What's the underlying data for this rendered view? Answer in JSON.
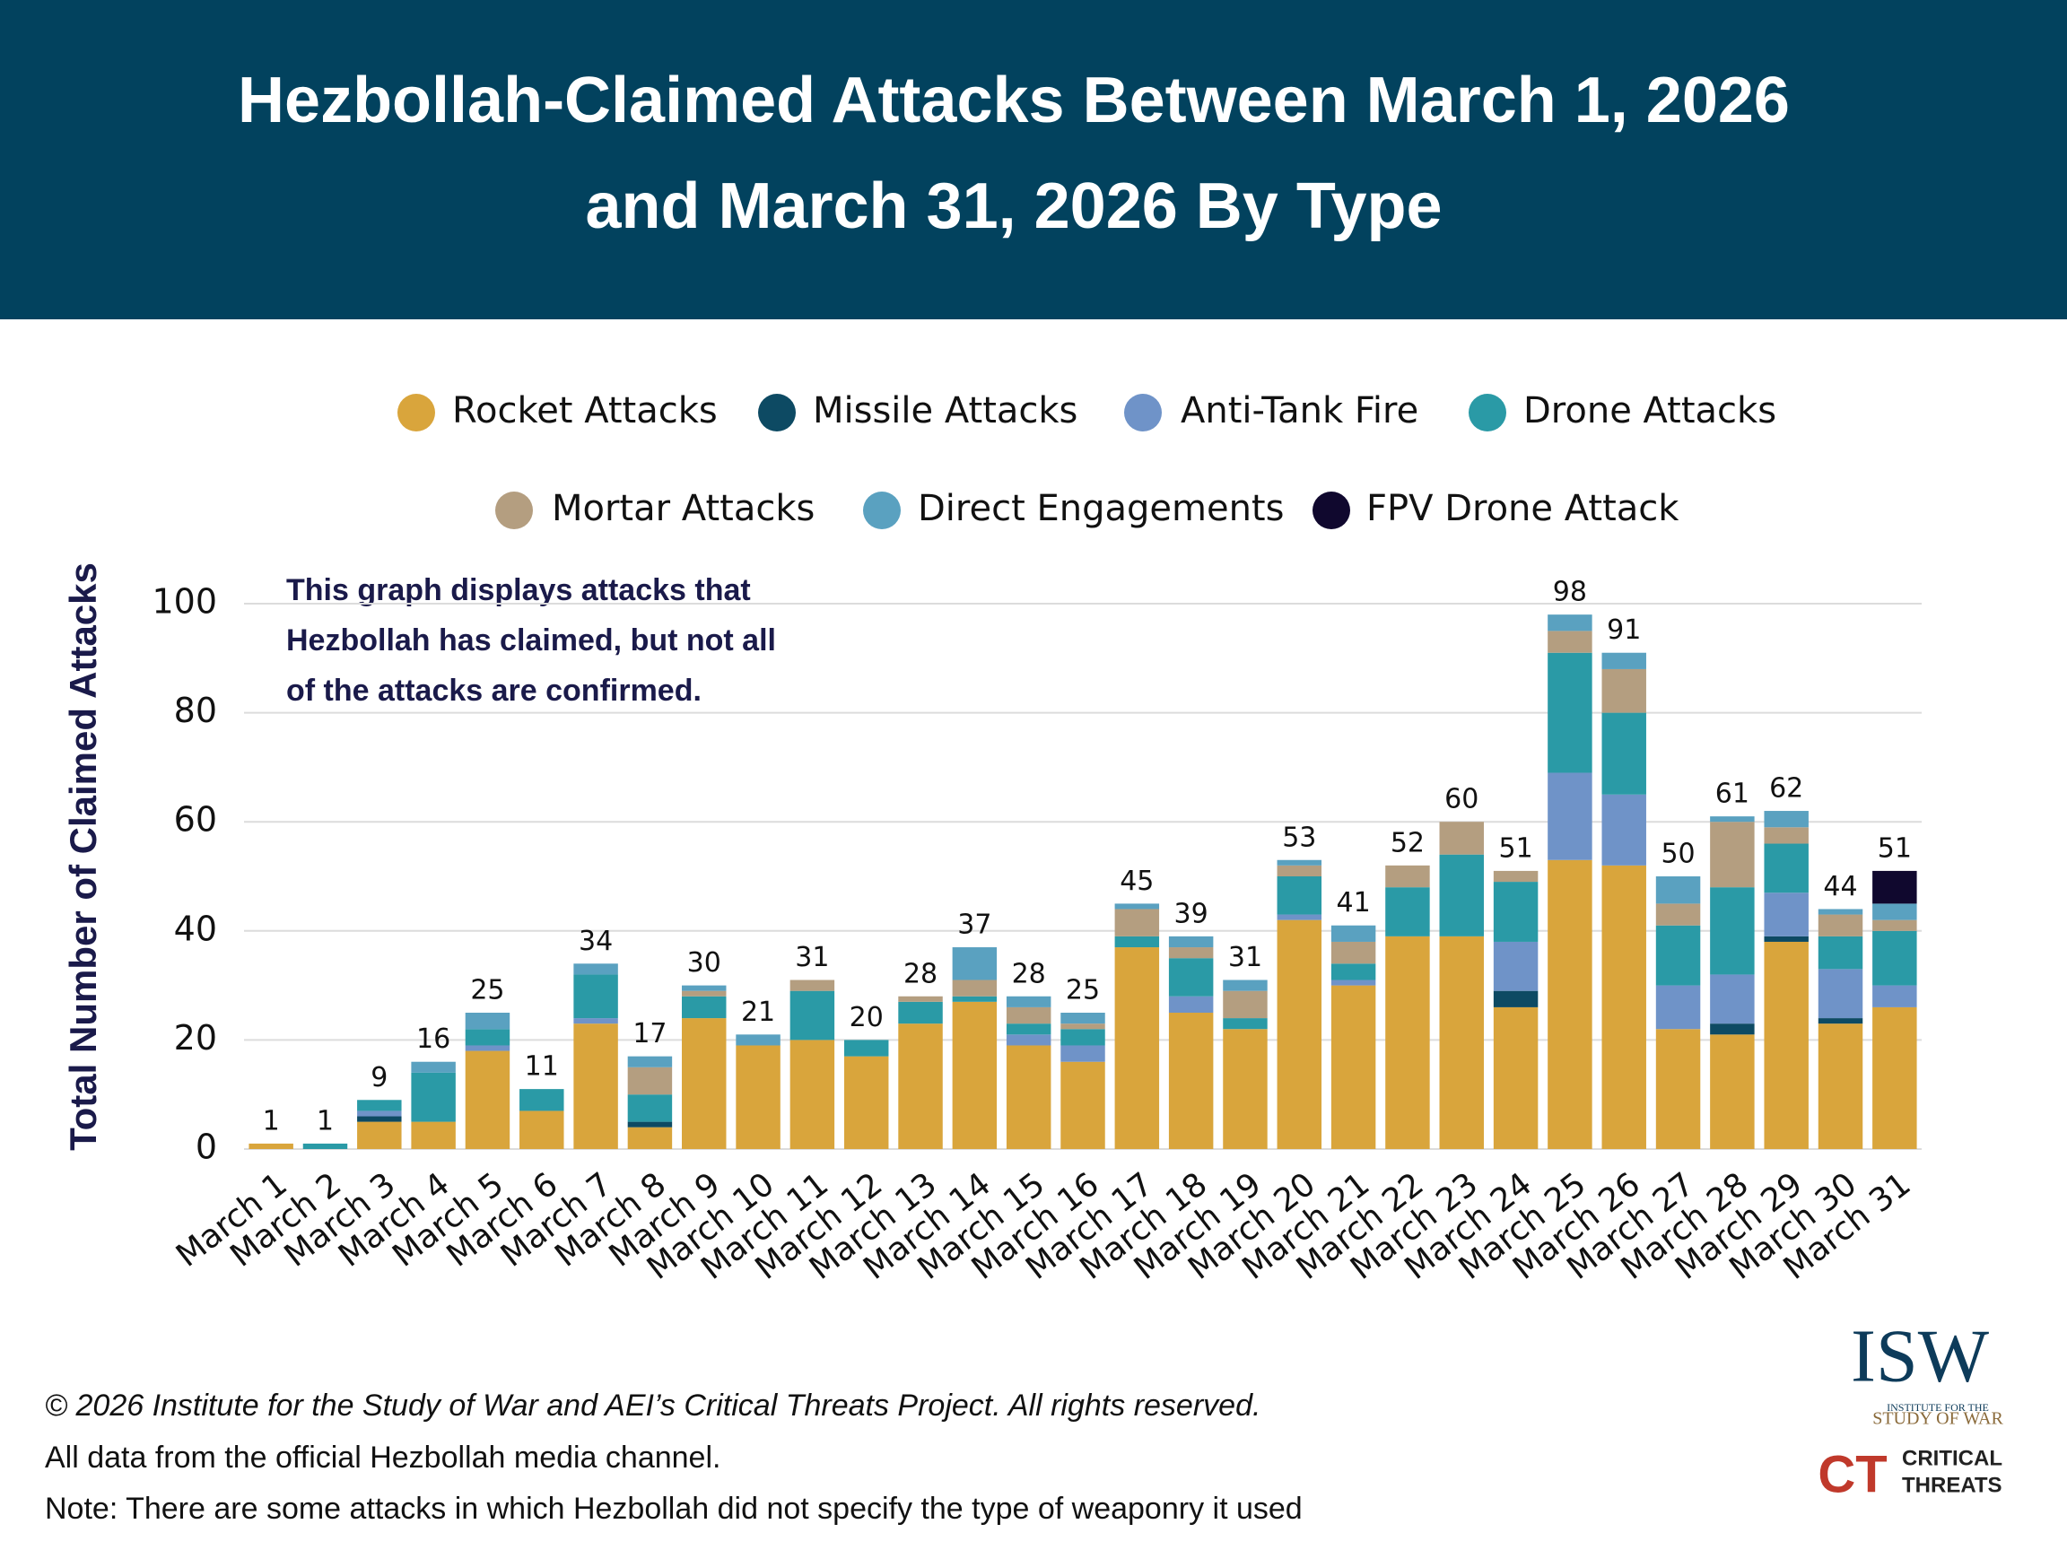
{
  "chart_data": {
    "type": "stacked-bar",
    "title": [
      "Hezbollah-Claimed Attacks Between March 1, 2026",
      "and March 31, 2026 By Type"
    ],
    "y_label": "Total Number of Claimed Attacks",
    "annotation": [
      "This graph displays attacks that",
      "Hezbollah has claimed, but not all",
      "of the attacks are confirmed."
    ],
    "categories": [
      "March 1",
      "March 2",
      "March 3",
      "March 4",
      "March 5",
      "March 6",
      "March 7",
      "March 8",
      "March 9",
      "March 10",
      "March 11",
      "March 12",
      "March 13",
      "March 14",
      "March 15",
      "March 16",
      "March 17",
      "March 18",
      "March 19",
      "March 20",
      "March 21",
      "March 22",
      "March 23",
      "March 24",
      "March 25",
      "March 26",
      "March 27",
      "March 28",
      "March 29",
      "March 30",
      "March 31"
    ],
    "series": [
      {
        "name": "Rocket Attacks",
        "color": "#d9a53c",
        "values": [
          1,
          0,
          5,
          5,
          18,
          7,
          23,
          4,
          24,
          19,
          20,
          17,
          23,
          27,
          19,
          16,
          37,
          25,
          22,
          42,
          30,
          39,
          39,
          26,
          53,
          52,
          22,
          21,
          38,
          23,
          26
        ]
      },
      {
        "name": "Missile Attacks",
        "color": "#0d4a63",
        "values": [
          0,
          0,
          1,
          0,
          0,
          0,
          0,
          1,
          0,
          0,
          0,
          0,
          0,
          0,
          0,
          0,
          0,
          0,
          0,
          0,
          0,
          0,
          0,
          3,
          0,
          0,
          0,
          2,
          1,
          1,
          0
        ]
      },
      {
        "name": "Anti-Tank Fire",
        "color": "#6f93c8",
        "values": [
          0,
          0,
          1,
          0,
          1,
          0,
          1,
          0,
          0,
          0,
          0,
          0,
          0,
          0,
          2,
          3,
          0,
          3,
          0,
          1,
          1,
          0,
          0,
          9,
          16,
          13,
          8,
          9,
          8,
          9,
          4
        ]
      },
      {
        "name": "Drone Attacks",
        "color": "#2a9aa6",
        "values": [
          0,
          1,
          2,
          9,
          3,
          4,
          8,
          5,
          4,
          0,
          9,
          3,
          4,
          1,
          2,
          3,
          2,
          7,
          2,
          7,
          3,
          9,
          15,
          11,
          22,
          15,
          11,
          16,
          9,
          6,
          10
        ]
      },
      {
        "name": "Mortar Attacks",
        "color": "#b49e80",
        "values": [
          0,
          0,
          0,
          0,
          0,
          0,
          0,
          5,
          1,
          0,
          2,
          0,
          1,
          3,
          3,
          1,
          5,
          2,
          5,
          2,
          4,
          4,
          6,
          2,
          4,
          8,
          4,
          12,
          3,
          4,
          2
        ]
      },
      {
        "name": "Direct Engagements",
        "color": "#5aa1c0",
        "values": [
          0,
          0,
          0,
          2,
          3,
          0,
          2,
          2,
          1,
          2,
          0,
          0,
          0,
          6,
          2,
          2,
          1,
          2,
          2,
          1,
          3,
          0,
          0,
          0,
          3,
          3,
          5,
          1,
          3,
          1,
          3
        ]
      },
      {
        "name": "FPV Drone Attack",
        "color": "#10082e",
        "values": [
          0,
          0,
          0,
          0,
          0,
          0,
          0,
          0,
          0,
          0,
          0,
          0,
          0,
          0,
          0,
          0,
          0,
          0,
          0,
          0,
          0,
          0,
          0,
          0,
          0,
          0,
          0,
          0,
          0,
          0,
          6
        ]
      }
    ],
    "totals": [
      1,
      1,
      9,
      16,
      25,
      11,
      34,
      17,
      30,
      21,
      31,
      20,
      28,
      37,
      28,
      25,
      45,
      39,
      31,
      53,
      41,
      52,
      60,
      51,
      98,
      91,
      50,
      61,
      62,
      44,
      51
    ],
    "ylim": [
      0,
      100
    ],
    "yticks": [
      0,
      20,
      40,
      60,
      80,
      100
    ],
    "grid": true,
    "footer": [
      "© 2026 Institute for the Study of War and AEI’s Critical Threats Project. All rights reserved.",
      "All data from the official Hezbollah media channel.",
      "Note: There are some attacks in which Hezbollah did not specify the type of weaponry it used"
    ],
    "logos": {
      "isw": "ISW",
      "isw_sub1": "INSTITUTE FOR THE",
      "isw_sub2": "STUDY OF WAR",
      "ct": "CT",
      "ct_sub1": "CRITICAL",
      "ct_sub2": "THREATS"
    }
  }
}
